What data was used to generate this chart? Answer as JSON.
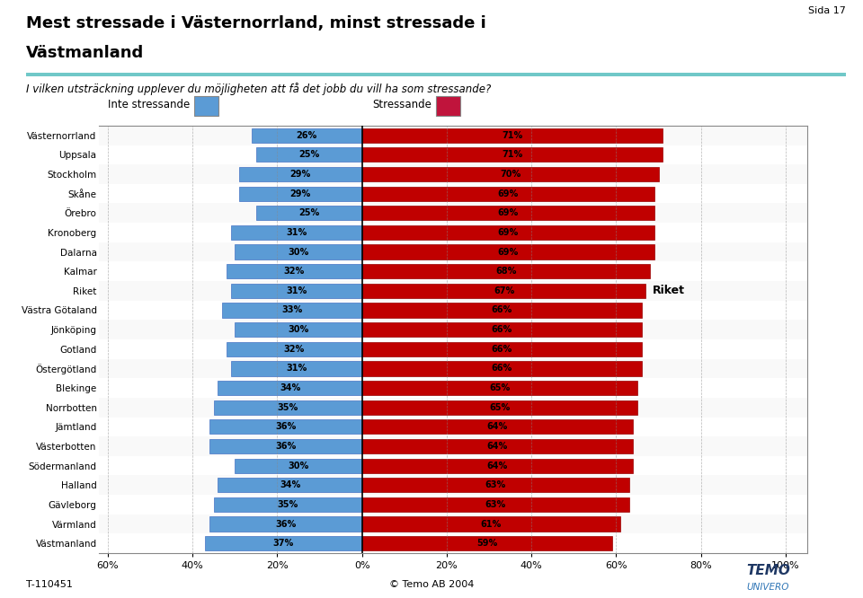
{
  "title_line1": "Mest stressade i Västernorrland, minst stressade i",
  "title_line2": "Västmanland",
  "subtitle": "I vilken utsträckning upplever du möjligheten att få det jobb du vill ha som stressande?",
  "page_label": "Sida 17",
  "legend_inte": "Inte stressande",
  "legend_stress": "Stressande",
  "color_inte": "#5B9BD5",
  "color_stress": "#C00000",
  "color_inte_edge": "#4472C4",
  "color_stress_edge": "#990000",
  "regions": [
    "Västernorrland",
    "Uppsala",
    "Stockholm",
    "Skåne",
    "Örebro",
    "Kronoberg",
    "Dalarna",
    "Kalmar",
    "Riket",
    "Västra Götaland",
    "Jönköping",
    "Gotland",
    "Östergötland",
    "Blekinge",
    "Norrbotten",
    "Jämtland",
    "Västerbotten",
    "Södermanland",
    "Halland",
    "Gävleborg",
    "Värmland",
    "Västmanland"
  ],
  "inte_values": [
    26,
    25,
    29,
    29,
    25,
    31,
    30,
    32,
    31,
    33,
    30,
    32,
    31,
    34,
    35,
    36,
    36,
    30,
    34,
    35,
    36,
    37
  ],
  "stress_values": [
    71,
    71,
    70,
    69,
    69,
    69,
    69,
    68,
    67,
    66,
    66,
    66,
    66,
    65,
    65,
    64,
    64,
    64,
    63,
    63,
    61,
    59
  ],
  "riket_index": 8,
  "footer_left": "T-110451",
  "footer_center": "© Temo AB 2004",
  "temo_color1": "#1F3864",
  "temo_color2": "#2E75B6",
  "xlim_left": -62,
  "xlim_right": 105,
  "xticks": [
    -60,
    -40,
    -20,
    0,
    20,
    40,
    60,
    80,
    100
  ],
  "xlabels": [
    "60%",
    "40%",
    "20%",
    "0%",
    "20%",
    "40%",
    "60%",
    "80%",
    "100%"
  ],
  "bar_height": 0.75,
  "label_fontsize": 7,
  "ytick_fontsize": 7.5,
  "xtick_fontsize": 8
}
